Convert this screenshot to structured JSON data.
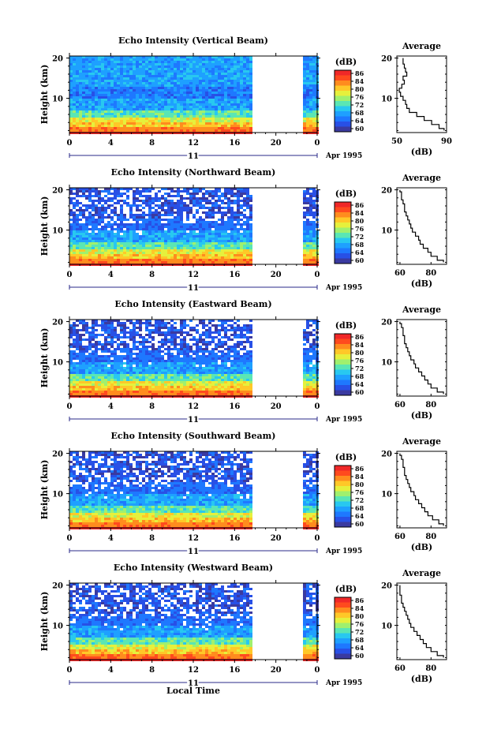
{
  "chart_data": {
    "type": "heatmap",
    "xlabel": "Local Time",
    "date_label": "11",
    "date_suffix": "Apr 1995",
    "x_ticks": [
      "0",
      "4",
      "8",
      "12",
      "16",
      "20",
      "0"
    ],
    "xlim": [
      0,
      24
    ],
    "data_gap_hours": [
      18,
      22.5
    ],
    "colorbar": {
      "label": "(dB)",
      "ticks": [
        "86",
        "84",
        "80",
        "76",
        "72",
        "68",
        "64",
        "60"
      ],
      "colormap": [
        "#3a3aa0",
        "#2850e6",
        "#1e78ff",
        "#1ea0ff",
        "#28c8f0",
        "#5ae6b4",
        "#a0f06e",
        "#e6f03c",
        "#ffc828",
        "#ff8c1e",
        "#ff4a1e",
        "#f02828"
      ]
    },
    "average_panel": {
      "title": "Average",
      "xlabel": "(dB)"
    },
    "panels": [
      {
        "title": "Echo Intensity (Vertical Beam)",
        "ylabel": "Height (km)",
        "y_ticks": [
          "20",
          "10"
        ],
        "ylim": [
          1.5,
          20.5
        ],
        "avg_x_ticks": [
          "50",
          "90"
        ],
        "avg_xlim": [
          50,
          90
        ],
        "profile": {
          "heights": [
            2,
            3,
            4,
            5,
            6,
            7,
            8,
            9,
            10,
            11,
            12,
            13,
            14,
            15,
            16,
            17,
            18,
            19,
            20
          ],
          "values": [
            88,
            84,
            78,
            72,
            66,
            60,
            58,
            57,
            55,
            53,
            52,
            54,
            56,
            55,
            58,
            57,
            56,
            55,
            55
          ]
        }
      },
      {
        "title": "Echo Intensity (Northward Beam)",
        "ylabel": "Height (km)",
        "y_ticks": [
          "20",
          "10"
        ],
        "ylim": [
          1.5,
          20.5
        ],
        "avg_x_ticks": [
          "60",
          "80"
        ],
        "avg_xlim": [
          58,
          90
        ],
        "profile": {
          "heights": [
            2,
            3,
            4,
            5,
            6,
            7,
            8,
            9,
            10,
            11,
            12,
            13,
            14,
            15,
            16,
            17,
            18,
            19,
            20
          ],
          "values": [
            88,
            84,
            80,
            78,
            75,
            73,
            72,
            70,
            68,
            67,
            66,
            65,
            64,
            63,
            63,
            62,
            61,
            61,
            60
          ]
        }
      },
      {
        "title": "Echo Intensity (Eastward Beam)",
        "ylabel": "Height (km)",
        "y_ticks": [
          "20",
          "10"
        ],
        "ylim": [
          1.5,
          20.5
        ],
        "avg_x_ticks": [
          "60",
          "80"
        ],
        "avg_xlim": [
          58,
          90
        ],
        "profile": {
          "heights": [
            2,
            3,
            4,
            5,
            6,
            7,
            8,
            9,
            10,
            11,
            12,
            13,
            14,
            15,
            16,
            17,
            18,
            19,
            20
          ],
          "values": [
            88,
            84,
            80,
            78,
            76,
            74,
            72,
            70,
            69,
            67,
            66,
            65,
            64,
            63,
            63,
            62,
            62,
            61,
            60
          ]
        }
      },
      {
        "title": "Echo Intensity (Southward Beam)",
        "ylabel": "Height (km)",
        "y_ticks": [
          "20",
          "10"
        ],
        "ylim": [
          1.5,
          20.5
        ],
        "avg_x_ticks": [
          "60",
          "80"
        ],
        "avg_xlim": [
          58,
          90
        ],
        "profile": {
          "heights": [
            2,
            3,
            4,
            5,
            6,
            7,
            8,
            9,
            10,
            11,
            12,
            13,
            14,
            15,
            16,
            17,
            18,
            19,
            20
          ],
          "values": [
            88,
            85,
            81,
            78,
            76,
            74,
            72,
            70,
            69,
            67,
            66,
            65,
            64,
            63,
            63,
            62,
            62,
            61,
            60
          ]
        }
      },
      {
        "title": "Echo Intensity (Westward Beam)",
        "ylabel": "Height (km)",
        "y_ticks": [
          "20",
          "10"
        ],
        "ylim": [
          1.5,
          20.5
        ],
        "avg_x_ticks": [
          "60",
          "80"
        ],
        "avg_xlim": [
          58,
          90
        ],
        "profile": {
          "heights": [
            2,
            3,
            4,
            5,
            6,
            7,
            8,
            9,
            10,
            11,
            12,
            13,
            14,
            15,
            16,
            17,
            18,
            19,
            20
          ],
          "values": [
            88,
            84,
            80,
            77,
            75,
            73,
            71,
            69,
            67,
            66,
            65,
            64,
            63,
            62,
            61,
            61,
            60,
            60,
            60
          ]
        }
      }
    ]
  }
}
